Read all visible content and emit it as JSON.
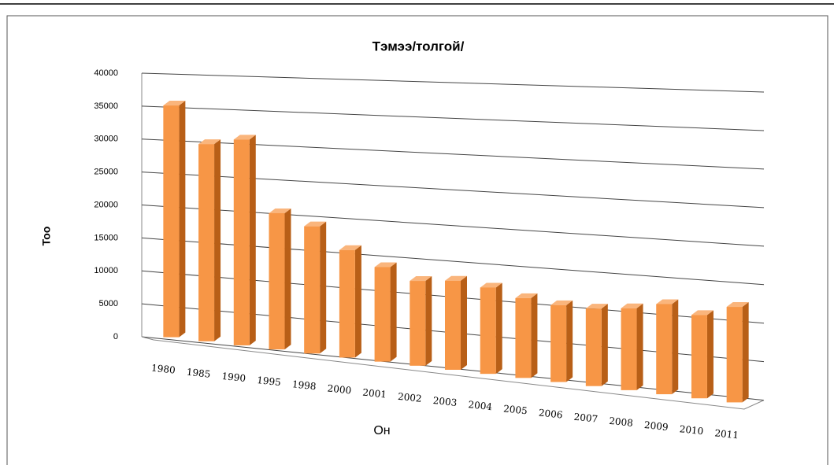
{
  "chart_data": {
    "type": "bar3d",
    "title": "Тэмээ/толгой/",
    "y_label": "Тоо",
    "x_label": "Он",
    "categories": [
      "1980",
      "1985",
      "1990",
      "1995",
      "1998",
      "2000",
      "2001",
      "2002",
      "2003",
      "2004",
      "2005",
      "2006",
      "2007",
      "2008",
      "2009",
      "2010",
      "2011"
    ],
    "values": [
      35000,
      29500,
      30500,
      20000,
      18500,
      15500,
      13500,
      12000,
      12500,
      12000,
      11000,
      10500,
      10500,
      11000,
      12000,
      11000,
      12500
    ],
    "color": "#f79646",
    "ylim": [
      0,
      40000
    ],
    "yticks": [
      0,
      5000,
      10000,
      15000,
      20000,
      25000,
      30000,
      35000,
      40000
    ],
    "grid": true
  }
}
